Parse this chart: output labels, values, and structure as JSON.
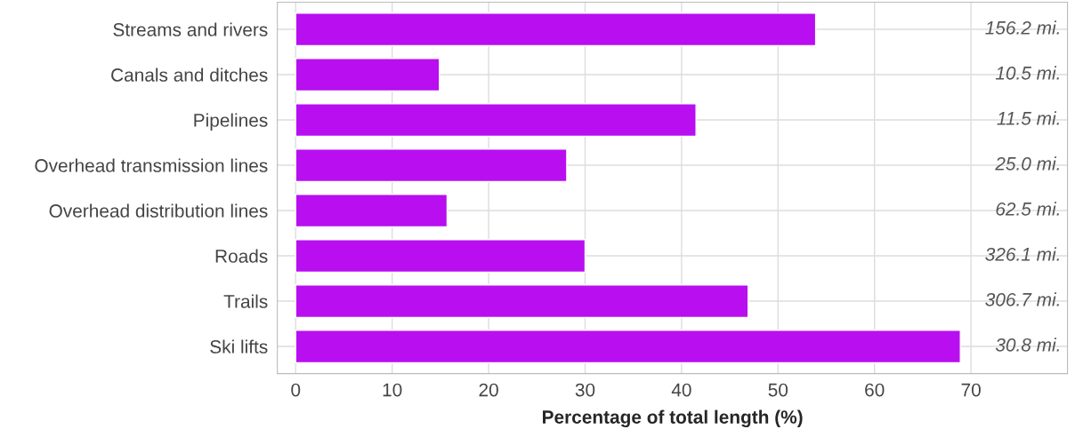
{
  "chart_data": {
    "type": "bar",
    "orientation": "horizontal",
    "xlabel": "Percentage of total length (%)",
    "categories": [
      "Streams and rivers",
      "Canals and ditches",
      "Pipelines",
      "Overhead transmission lines",
      "Overhead distribution lines",
      "Roads",
      "Trails",
      "Ski lifts"
    ],
    "values": [
      53.9,
      14.9,
      41.5,
      28.1,
      15.7,
      30.0,
      46.9,
      68.9
    ],
    "color": "#b80ef0",
    "xlim": [
      -1.9,
      80
    ],
    "xticks": [
      0,
      10,
      20,
      30,
      40,
      50,
      60,
      70
    ],
    "grid": true,
    "annotations": [
      "156.2 mi.",
      "10.5 mi.",
      "11.5 mi.",
      "25.0 mi.",
      "62.5 mi.",
      "326.1 mi.",
      "306.7 mi.",
      "30.8 mi."
    ]
  }
}
